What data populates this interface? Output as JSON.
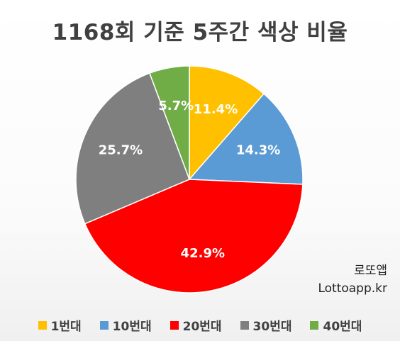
{
  "chart_data": {
    "type": "pie",
    "title": "1168회 기준 5주간 색상 비율",
    "categories": [
      "1번대",
      "10번대",
      "20번대",
      "30번대",
      "40번대"
    ],
    "values": [
      11.4,
      14.3,
      42.9,
      25.7,
      5.7
    ],
    "labels": [
      "11.4%",
      "14.3%",
      "42.9%",
      "25.7%",
      "5.7%"
    ],
    "colors": [
      "#FFC000",
      "#5B9BD5",
      "#FF0000",
      "#7F7F7F",
      "#70AD47"
    ],
    "legend_position": "bottom"
  },
  "watermark": {
    "line1": "로또앱",
    "line2": "Lottoapp.kr"
  }
}
